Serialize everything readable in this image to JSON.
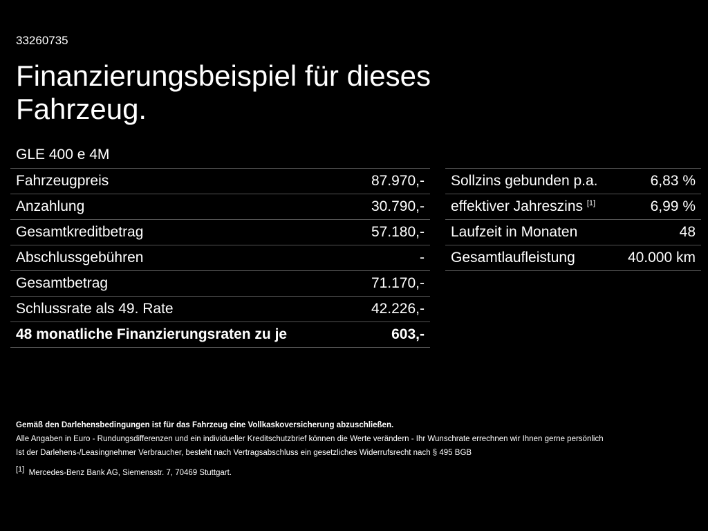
{
  "id": "33260735",
  "title_lines": [
    "Finanzierungsbeispiel für dieses",
    "Fahrzeug."
  ],
  "model": "GLE 400 e 4M",
  "left_table": {
    "rows": [
      [
        "Fahrzeugpreis",
        "87.970,-"
      ],
      [
        "Anzahlung",
        "30.790,-"
      ],
      [
        "Gesamtkreditbetrag",
        "57.180,-"
      ],
      [
        "Abschlussgebühren",
        "-"
      ],
      [
        "Gesamtbetrag",
        "71.170,-"
      ],
      [
        "Schlussrate als 49. Rate",
        "42.226,-"
      ],
      [
        "48 monatliche Finanzierungsraten zu je",
        "603,-"
      ]
    ]
  },
  "right_table": {
    "rows": [
      [
        "Sollzins gebunden p.a.",
        "6,83 %"
      ],
      [
        "effektiver Jahreszins",
        "6,99 %"
      ],
      [
        "Laufzeit in Monaten",
        "48"
      ],
      [
        "Gesamtlaufleistung",
        "40.000 km"
      ]
    ],
    "footnote_ref": "[1]"
  },
  "notes": {
    "bold": "Gemäß den Darlehensbedingungen ist für das Fahrzeug eine Vollkaskoversicherung abzuschließen.",
    "lines": [
      "Alle Angaben in Euro - Rundungsdifferenzen und ein individueller Kreditschutzbrief können die Werte verändern - Ihr Wunschrate errechnen wir Ihnen gerne persönlich",
      "Ist der Darlehens-/Leasingnehmer Verbraucher, besteht nach Vertragsabschluss ein gesetzliches Widerrufsrecht nach § 495 BGB"
    ],
    "footnote_mark": "[1]",
    "footnote_text": "Mercedes-Benz Bank AG, Siemensstr. 7, 70469 Stuttgart."
  }
}
